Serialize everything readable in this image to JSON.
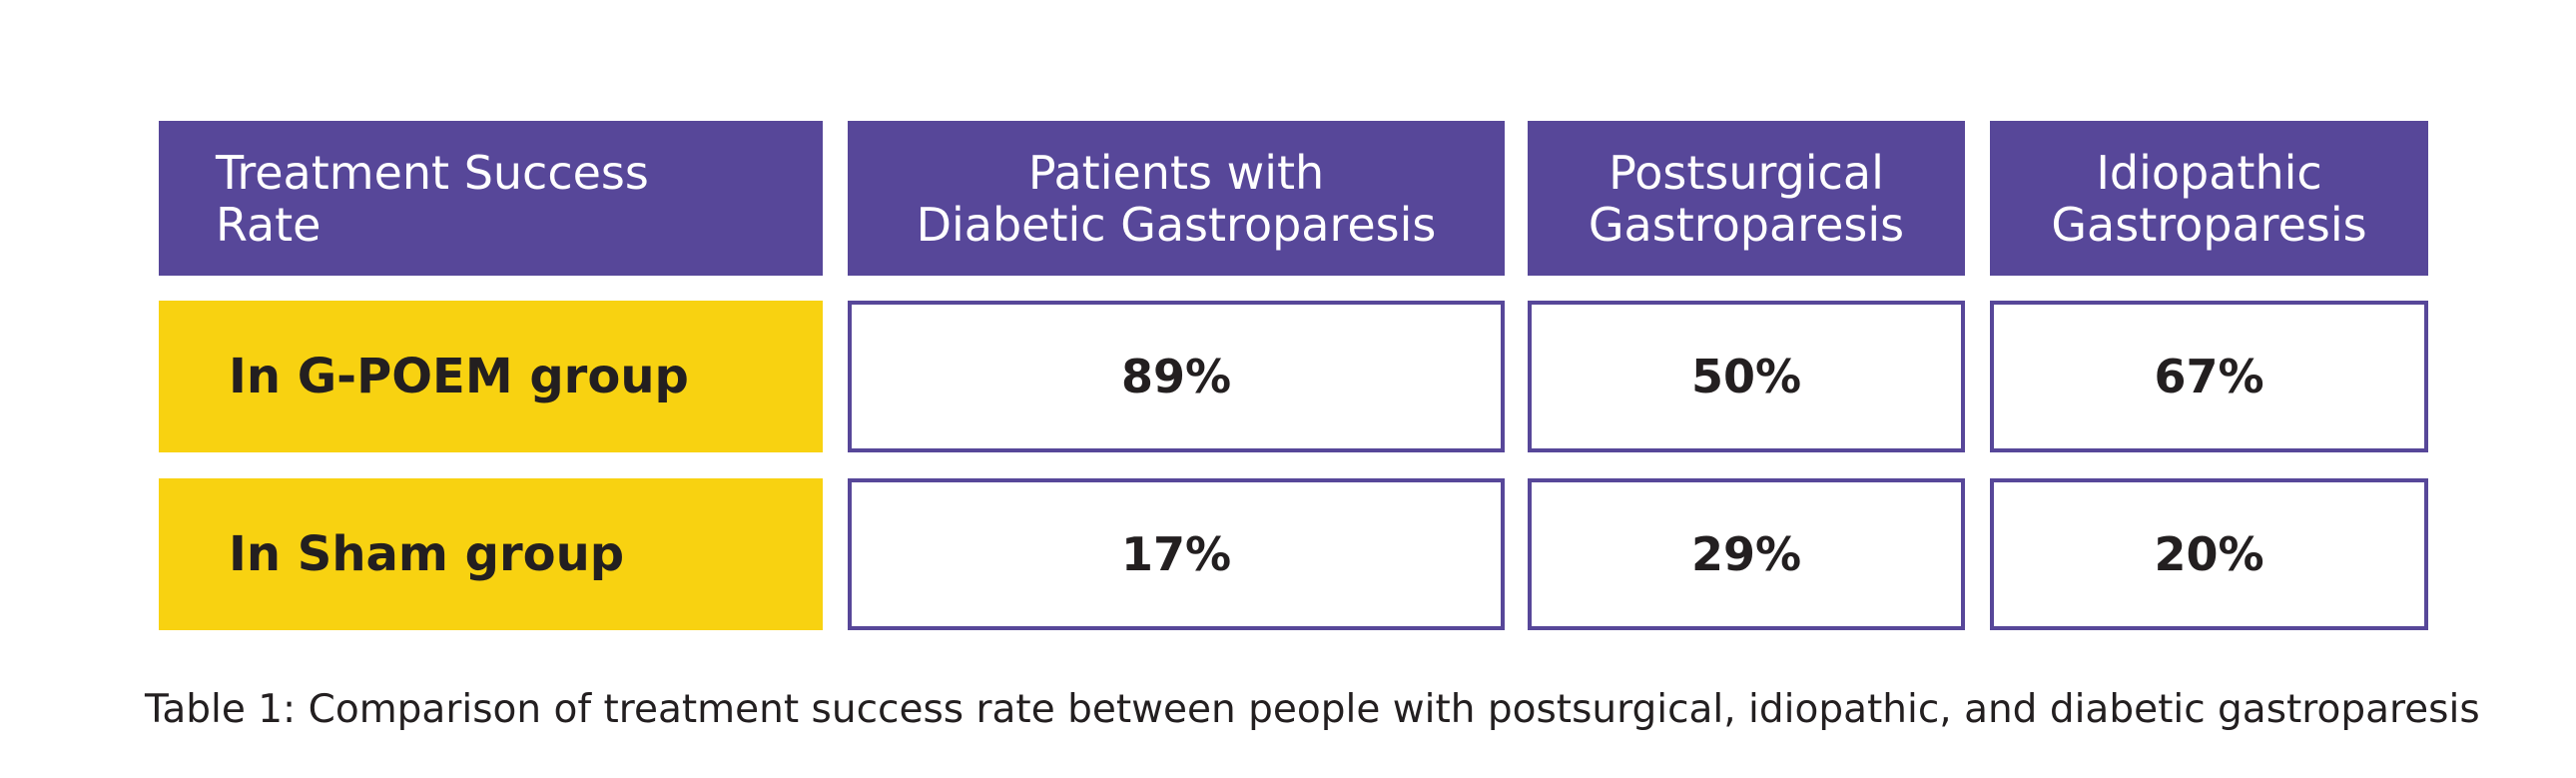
{
  "chart_data": {
    "type": "table",
    "columns": [
      "Treatment Success\nRate",
      "Patients with\nDiabetic  Gastroparesis",
      "Postsurgical\nGastroparesis",
      "Idiopathic\nGastroparesis"
    ],
    "rows": [
      {
        "label": "In G-POEM group",
        "values": [
          "89%",
          "50%",
          "67%"
        ]
      },
      {
        "label": "In Sham group",
        "values": [
          "17%",
          "29%",
          "20%"
        ]
      }
    ],
    "caption": "Table 1: Comparison of treatment success rate between people with postsurgical, idiopathic, and diabetic gastroparesis"
  },
  "colors": {
    "header_bg": "#574799",
    "row_label_bg": "#f8d211",
    "border": "#574799",
    "text": "#231f20"
  }
}
